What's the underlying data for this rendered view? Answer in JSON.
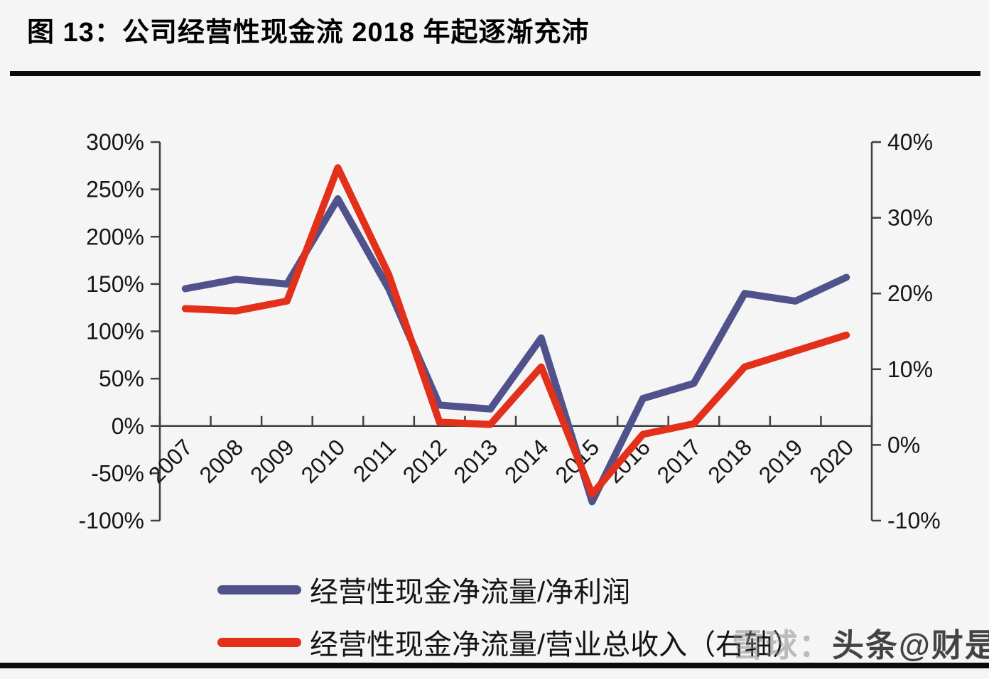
{
  "title": "图 13：公司经营性现金流 2018 年起逐渐充沛",
  "watermark": {
    "part1": "雪球：",
    "part2": "头条@财是"
  },
  "chart_data": {
    "type": "line",
    "categories": [
      "2007",
      "2008",
      "2009",
      "2010",
      "2011",
      "2012",
      "2013",
      "2014",
      "2015",
      "2016",
      "2017",
      "2018",
      "2019",
      "2020"
    ],
    "series": [
      {
        "name": "经营性现金净流量/净利润",
        "axis": "left",
        "color": "#50538b",
        "values": [
          145,
          155,
          150,
          240,
          145,
          22,
          18,
          93,
          -80,
          29,
          45,
          140,
          132,
          157
        ]
      },
      {
        "name": "经营性现金净流量/营业总收入（右轴）",
        "axis": "right",
        "color": "#e3301a",
        "values": [
          18,
          17.7,
          19,
          36.6,
          22.5,
          3,
          2.7,
          10.3,
          -6.5,
          1.4,
          2.8,
          10.3,
          12.4,
          14.5
        ]
      }
    ],
    "left_axis": {
      "max": 300,
      "min": -100,
      "step": 50,
      "tick_labels": [
        "300%",
        "250%",
        "200%",
        "150%",
        "100%",
        "50%",
        "0%",
        "-50%",
        "-100%"
      ]
    },
    "right_axis": {
      "max": 40,
      "min": -10,
      "step": 10,
      "tick_labels": [
        "40%",
        "30%",
        "20%",
        "10%",
        "0%",
        "-10%"
      ]
    },
    "baseline_left_value": 0,
    "grid": false,
    "legend_position": "bottom",
    "line_width": 10
  }
}
